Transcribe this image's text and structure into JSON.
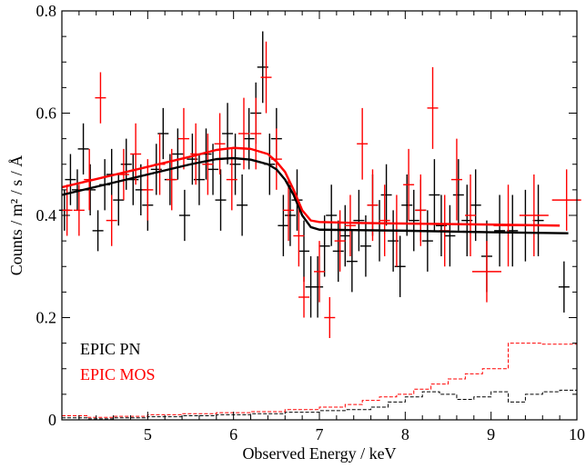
{
  "chart_data": {
    "type": "line",
    "title": "",
    "xlabel": "Observed Energy / keV",
    "ylabel": "Counts / m² / s / Å",
    "xlim": [
      4.0,
      10.0
    ],
    "ylim": [
      0.0,
      0.8
    ],
    "xticks": [
      5,
      6,
      7,
      8,
      9,
      10
    ],
    "yticks": [
      0,
      0.2,
      0.4,
      0.6,
      0.8
    ],
    "xticklabels": [
      "5",
      "6",
      "7",
      "8",
      "9",
      "10"
    ],
    "yticklabels": [
      "0",
      "0.2",
      "0.4",
      "0.6",
      "0.8"
    ],
    "legend_position": "lower-left",
    "grid": false,
    "series": [
      {
        "name": "EPIC PN",
        "color": "#000000",
        "model_curve": {
          "x": [
            4.0,
            4.5,
            5.0,
            5.5,
            5.8,
            6.0,
            6.2,
            6.4,
            6.5,
            6.6,
            6.7,
            6.8,
            6.9,
            7.0,
            7.5,
            8.0,
            9.0,
            9.9
          ],
          "y": [
            0.44,
            0.46,
            0.48,
            0.5,
            0.51,
            0.512,
            0.509,
            0.5,
            0.49,
            0.47,
            0.44,
            0.4,
            0.377,
            0.372,
            0.371,
            0.37,
            0.367,
            0.365
          ]
        },
        "data_points": [
          {
            "x": 4.03,
            "y": 0.41,
            "err": 0.04
          },
          {
            "x": 4.1,
            "y": 0.47,
            "err": 0.05
          },
          {
            "x": 4.18,
            "y": 0.45,
            "err": 0.04
          },
          {
            "x": 4.25,
            "y": 0.53,
            "err": 0.05
          },
          {
            "x": 4.33,
            "y": 0.45,
            "err": 0.05
          },
          {
            "x": 4.42,
            "y": 0.37,
            "err": 0.04
          },
          {
            "x": 4.5,
            "y": 0.46,
            "err": 0.05
          },
          {
            "x": 4.58,
            "y": 0.48,
            "err": 0.05
          },
          {
            "x": 4.66,
            "y": 0.43,
            "err": 0.05
          },
          {
            "x": 4.75,
            "y": 0.5,
            "err": 0.05
          },
          {
            "x": 4.83,
            "y": 0.47,
            "err": 0.05
          },
          {
            "x": 4.92,
            "y": 0.45,
            "err": 0.05
          },
          {
            "x": 5.0,
            "y": 0.42,
            "err": 0.05
          },
          {
            "x": 5.1,
            "y": 0.49,
            "err": 0.05
          },
          {
            "x": 5.18,
            "y": 0.56,
            "err": 0.05
          },
          {
            "x": 5.26,
            "y": 0.47,
            "err": 0.05
          },
          {
            "x": 5.35,
            "y": 0.52,
            "err": 0.05
          },
          {
            "x": 5.43,
            "y": 0.4,
            "err": 0.05
          },
          {
            "x": 5.52,
            "y": 0.51,
            "err": 0.05
          },
          {
            "x": 5.6,
            "y": 0.47,
            "err": 0.05
          },
          {
            "x": 5.68,
            "y": 0.52,
            "err": 0.05
          },
          {
            "x": 5.76,
            "y": 0.49,
            "err": 0.05
          },
          {
            "x": 5.85,
            "y": 0.43,
            "err": 0.06
          },
          {
            "x": 5.93,
            "y": 0.56,
            "err": 0.06
          },
          {
            "x": 6.02,
            "y": 0.5,
            "err": 0.06
          },
          {
            "x": 6.1,
            "y": 0.42,
            "err": 0.06
          },
          {
            "x": 6.18,
            "y": 0.55,
            "err": 0.06
          },
          {
            "x": 6.26,
            "y": 0.6,
            "err": 0.06
          },
          {
            "x": 6.34,
            "y": 0.69,
            "err": 0.07
          },
          {
            "x": 6.42,
            "y": 0.5,
            "err": 0.06
          },
          {
            "x": 6.5,
            "y": 0.55,
            "err": 0.06
          },
          {
            "x": 6.58,
            "y": 0.38,
            "err": 0.06
          },
          {
            "x": 6.66,
            "y": 0.4,
            "err": 0.06
          },
          {
            "x": 6.74,
            "y": 0.43,
            "err": 0.06
          },
          {
            "x": 6.82,
            "y": 0.33,
            "err": 0.06
          },
          {
            "x": 6.9,
            "y": 0.26,
            "err": 0.06
          },
          {
            "x": 6.98,
            "y": 0.26,
            "err": 0.06
          },
          {
            "x": 7.06,
            "y": 0.34,
            "err": 0.06
          },
          {
            "x": 7.14,
            "y": 0.4,
            "err": 0.06
          },
          {
            "x": 7.22,
            "y": 0.33,
            "err": 0.06
          },
          {
            "x": 7.3,
            "y": 0.36,
            "err": 0.06
          },
          {
            "x": 7.38,
            "y": 0.31,
            "err": 0.06
          },
          {
            "x": 7.46,
            "y": 0.39,
            "err": 0.06
          },
          {
            "x": 7.54,
            "y": 0.34,
            "err": 0.06
          },
          {
            "x": 7.62,
            "y": 0.42,
            "err": 0.06
          },
          {
            "x": 7.7,
            "y": 0.37,
            "err": 0.06
          },
          {
            "x": 7.78,
            "y": 0.44,
            "err": 0.06
          },
          {
            "x": 7.86,
            "y": 0.35,
            "err": 0.06
          },
          {
            "x": 7.94,
            "y": 0.3,
            "err": 0.06
          },
          {
            "x": 8.02,
            "y": 0.42,
            "err": 0.06
          },
          {
            "x": 8.1,
            "y": 0.39,
            "err": 0.06
          },
          {
            "x": 8.18,
            "y": 0.41,
            "err": 0.06
          },
          {
            "x": 8.26,
            "y": 0.35,
            "err": 0.06
          },
          {
            "x": 8.34,
            "y": 0.44,
            "err": 0.07
          },
          {
            "x": 8.42,
            "y": 0.38,
            "err": 0.06
          },
          {
            "x": 8.52,
            "y": 0.36,
            "err": 0.06
          },
          {
            "x": 8.62,
            "y": 0.44,
            "err": 0.07
          },
          {
            "x": 8.72,
            "y": 0.39,
            "err": 0.07
          },
          {
            "x": 8.82,
            "y": 0.42,
            "err": 0.07
          },
          {
            "x": 8.95,
            "y": 0.32,
            "err": 0.07
          },
          {
            "x": 9.1,
            "y": 0.37,
            "err": 0.07
          },
          {
            "x": 9.25,
            "y": 0.37,
            "err": 0.07
          },
          {
            "x": 9.4,
            "y": 0.38,
            "err": 0.07
          },
          {
            "x": 9.55,
            "y": 0.39,
            "err": 0.07
          },
          {
            "x": 9.85,
            "y": 0.26,
            "err": 0.05
          }
        ],
        "background": {
          "x": [
            4.0,
            4.3,
            4.6,
            5.0,
            5.4,
            5.8,
            6.2,
            6.6,
            7.0,
            7.3,
            7.6,
            7.8,
            8.0,
            8.2,
            8.4,
            8.6,
            8.8,
            9.0,
            9.2,
            9.4,
            9.6,
            9.8,
            10.0
          ],
          "y": [
            0.004,
            0.002,
            0.004,
            0.006,
            0.008,
            0.01,
            0.012,
            0.015,
            0.018,
            0.02,
            0.025,
            0.035,
            0.045,
            0.055,
            0.05,
            0.04,
            0.045,
            0.055,
            0.035,
            0.05,
            0.055,
            0.058,
            0.058
          ]
        }
      },
      {
        "name": "EPIC MOS",
        "color": "#ff0000",
        "model_curve": {
          "x": [
            4.0,
            4.5,
            5.0,
            5.5,
            5.8,
            6.0,
            6.2,
            6.4,
            6.5,
            6.6,
            6.7,
            6.8,
            6.9,
            7.0,
            7.5,
            8.0,
            9.0,
            9.8
          ],
          "y": [
            0.455,
            0.475,
            0.495,
            0.515,
            0.528,
            0.532,
            0.53,
            0.52,
            0.505,
            0.485,
            0.45,
            0.41,
            0.39,
            0.387,
            0.385,
            0.384,
            0.382,
            0.38
          ]
        },
        "data_points": [
          {
            "x": 4.06,
            "y": 0.41,
            "err": 0.05
          },
          {
            "x": 4.2,
            "y": 0.41,
            "err": 0.05
          },
          {
            "x": 4.32,
            "y": 0.47,
            "err": 0.06
          },
          {
            "x": 4.45,
            "y": 0.63,
            "err": 0.05
          },
          {
            "x": 4.58,
            "y": 0.39,
            "err": 0.05
          },
          {
            "x": 4.72,
            "y": 0.48,
            "err": 0.05
          },
          {
            "x": 4.86,
            "y": 0.52,
            "err": 0.06
          },
          {
            "x": 5.0,
            "y": 0.45,
            "err": 0.06
          },
          {
            "x": 5.14,
            "y": 0.5,
            "err": 0.06
          },
          {
            "x": 5.28,
            "y": 0.47,
            "err": 0.06
          },
          {
            "x": 5.42,
            "y": 0.55,
            "err": 0.06
          },
          {
            "x": 5.56,
            "y": 0.52,
            "err": 0.06
          },
          {
            "x": 5.7,
            "y": 0.5,
            "err": 0.06
          },
          {
            "x": 5.84,
            "y": 0.54,
            "err": 0.06
          },
          {
            "x": 5.98,
            "y": 0.47,
            "err": 0.06
          },
          {
            "x": 6.12,
            "y": 0.56,
            "err": 0.07
          },
          {
            "x": 6.26,
            "y": 0.56,
            "err": 0.07
          },
          {
            "x": 6.38,
            "y": 0.67,
            "err": 0.07
          },
          {
            "x": 6.5,
            "y": 0.51,
            "err": 0.06
          },
          {
            "x": 6.64,
            "y": 0.41,
            "err": 0.06
          },
          {
            "x": 6.76,
            "y": 0.36,
            "err": 0.06
          },
          {
            "x": 6.82,
            "y": 0.24,
            "err": 0.04
          },
          {
            "x": 7.0,
            "y": 0.29,
            "err": 0.06
          },
          {
            "x": 7.12,
            "y": 0.2,
            "err": 0.04
          },
          {
            "x": 7.24,
            "y": 0.35,
            "err": 0.06
          },
          {
            "x": 7.36,
            "y": 0.38,
            "err": 0.06
          },
          {
            "x": 7.5,
            "y": 0.54,
            "err": 0.07
          },
          {
            "x": 7.62,
            "y": 0.42,
            "err": 0.07
          },
          {
            "x": 7.76,
            "y": 0.39,
            "err": 0.07
          },
          {
            "x": 7.9,
            "y": 0.37,
            "err": 0.07
          },
          {
            "x": 8.04,
            "y": 0.46,
            "err": 0.07
          },
          {
            "x": 8.18,
            "y": 0.41,
            "err": 0.07
          },
          {
            "x": 8.32,
            "y": 0.61,
            "err": 0.08
          },
          {
            "x": 8.46,
            "y": 0.37,
            "err": 0.07
          },
          {
            "x": 8.6,
            "y": 0.47,
            "err": 0.08
          },
          {
            "x": 8.76,
            "y": 0.4,
            "err": 0.08
          },
          {
            "x": 8.95,
            "y": 0.29,
            "err": 0.06
          },
          {
            "x": 9.2,
            "y": 0.38,
            "err": 0.08
          },
          {
            "x": 9.5,
            "y": 0.4,
            "err": 0.08
          },
          {
            "x": 9.88,
            "y": 0.43,
            "err": 0.06
          }
        ],
        "background": {
          "x": [
            4.0,
            4.3,
            4.6,
            5.0,
            5.4,
            5.8,
            6.2,
            6.6,
            7.0,
            7.3,
            7.5,
            7.7,
            7.9,
            8.1,
            8.3,
            8.5,
            8.7,
            8.9,
            9.2,
            9.6,
            10.0
          ],
          "y": [
            0.008,
            0.005,
            0.007,
            0.01,
            0.012,
            0.014,
            0.016,
            0.02,
            0.025,
            0.03,
            0.038,
            0.045,
            0.05,
            0.06,
            0.07,
            0.08,
            0.09,
            0.1,
            0.15,
            0.148,
            0.148
          ]
        }
      }
    ]
  }
}
